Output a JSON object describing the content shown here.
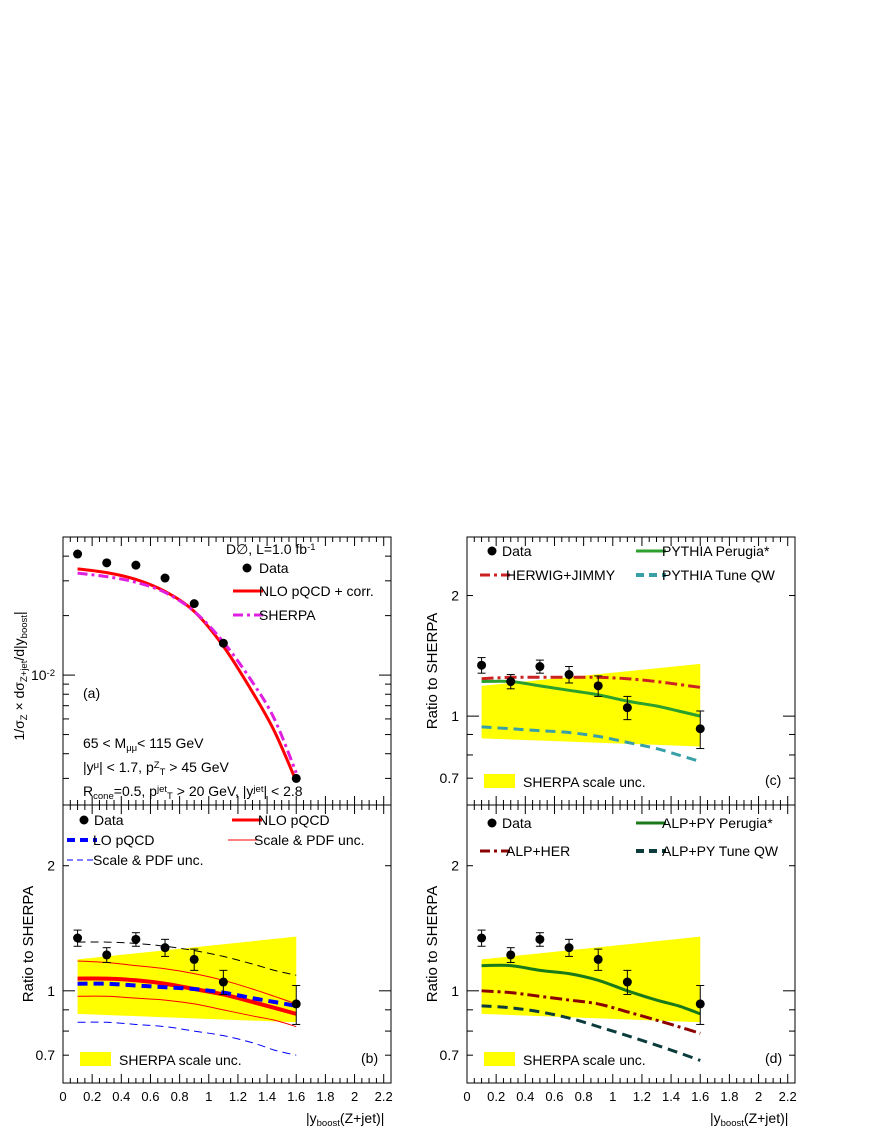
{
  "chart_data": [
    {
      "panel": "a",
      "type": "line",
      "ylabel_parts": [
        "1/σ",
        "Z",
        " × dσ",
        "Z+jet",
        "/d|y",
        "boost",
        "|"
      ],
      "yscale": "log",
      "ylim": [
        0.0022,
        0.05
      ],
      "xlim": [
        0,
        2.25
      ],
      "yticklabel": {
        "base": "10",
        "exp": "-2",
        "value": 0.01
      },
      "legend_header": {
        "text": "D∅, L=1.0 fb",
        "sup": "-1"
      },
      "legend": [
        {
          "label": "Data",
          "style": "marker"
        },
        {
          "label": "NLO pQCD + corr.",
          "style": "solid",
          "color": "#ff0000"
        },
        {
          "label": "SHERPA",
          "style": "dashdot",
          "color": "#e020e0"
        }
      ],
      "panel_label": "(a)",
      "cuts": [
        {
          "parts": [
            "65 < M",
            "μμ",
            "< 115 GeV"
          ]
        },
        {
          "parts": [
            "|y",
            "μ",
            "| < 1.7, p",
            "Z",
            "T",
            " > 45 GeV"
          ]
        },
        {
          "parts": [
            "R",
            "cone",
            "=0.5,  p",
            "jet",
            "T",
            " > 20 GeV,  |y",
            "jet",
            "| < 2.8"
          ]
        }
      ],
      "data": {
        "x": [
          0.1,
          0.3,
          0.5,
          0.7,
          0.9,
          1.1,
          1.6
        ],
        "y": [
          0.041,
          0.037,
          0.036,
          0.031,
          0.023,
          0.0145,
          0.003
        ]
      },
      "series": [
        {
          "name": "NLO pQCD + corr.",
          "color": "#ff0000",
          "x": [
            0.1,
            0.3,
            0.5,
            0.7,
            0.9,
            1.1,
            1.3,
            1.45,
            1.6
          ],
          "y": [
            0.0345,
            0.033,
            0.0305,
            0.0265,
            0.021,
            0.014,
            0.0082,
            0.0052,
            0.0029
          ]
        },
        {
          "name": "SHERPA",
          "color": "#e020e0",
          "x": [
            0.1,
            0.3,
            0.5,
            0.7,
            0.9,
            1.1,
            1.3,
            1.45,
            1.6
          ],
          "y": [
            0.0328,
            0.0315,
            0.0295,
            0.0262,
            0.021,
            0.0147,
            0.0092,
            0.006,
            0.0032
          ]
        }
      ]
    },
    {
      "panel": "b",
      "type": "line",
      "ylabel": "Ratio to SHERPA",
      "yscale": "log",
      "ylim": [
        0.6,
        2.8
      ],
      "xlim": [
        0,
        2.25
      ],
      "yticks": [
        0.7,
        1,
        2
      ],
      "yticklabels": [
        "0.7",
        "1",
        "2"
      ],
      "xticks": [
        0,
        0.2,
        0.4,
        0.6,
        0.8,
        1,
        1.2,
        1.4,
        1.6,
        1.8,
        2,
        2.2
      ],
      "xticklabels": [
        "0",
        "0.2",
        "0.4",
        "0.6",
        "0.8",
        "1",
        "1.2",
        "1.4",
        "1.6",
        "1.8",
        "2",
        "2.2"
      ],
      "xlabel_parts": [
        "|y",
        "boost",
        "(Z+jet)|"
      ],
      "panel_label": "(b)",
      "legend": [
        {
          "label": "Data",
          "style": "marker"
        },
        {
          "label": "NLO pQCD",
          "style": "thick-solid",
          "color": "#ff0000"
        },
        {
          "label": "LO pQCD",
          "style": "thick-dash",
          "color": "#0000ff"
        },
        {
          "label": "Scale & PDF unc.",
          "style": "thin-solid",
          "color": "#ff0000"
        },
        {
          "label": "Scale & PDF unc.",
          "style": "thin-dash",
          "color": "#0000ff"
        }
      ],
      "band": {
        "label": "SHERPA scale unc.",
        "color": "#ffff00",
        "x": [
          0.1,
          1.6
        ],
        "lower": [
          0.88,
          0.84
        ],
        "upper": [
          1.19,
          1.35
        ]
      },
      "data": {
        "x": [
          0.1,
          0.3,
          0.5,
          0.7,
          0.9,
          1.1,
          1.6
        ],
        "y": [
          1.34,
          1.22,
          1.33,
          1.27,
          1.19,
          1.05,
          0.93
        ],
        "err": [
          0.06,
          0.05,
          0.05,
          0.06,
          0.07,
          0.07,
          0.1
        ]
      },
      "series": [
        {
          "name": "NLO pQCD",
          "color": "#ff0000",
          "width": 4,
          "dash": "",
          "x": [
            0.1,
            0.3,
            0.5,
            0.7,
            0.9,
            1.1,
            1.3,
            1.45,
            1.6
          ],
          "y": [
            1.07,
            1.07,
            1.06,
            1.04,
            1.01,
            0.98,
            0.94,
            0.91,
            0.88
          ]
        },
        {
          "name": "NLO pQCD upper unc.",
          "color": "#ff0000",
          "width": 1,
          "dash": "",
          "x": [
            0.1,
            0.3,
            0.5,
            0.7,
            0.9,
            1.1,
            1.3,
            1.45,
            1.6
          ],
          "y": [
            1.18,
            1.17,
            1.15,
            1.13,
            1.1,
            1.06,
            1.01,
            0.97,
            0.93
          ]
        },
        {
          "name": "NLO pQCD lower unc.",
          "color": "#ff0000",
          "width": 1,
          "dash": "",
          "x": [
            0.1,
            0.3,
            0.5,
            0.7,
            0.9,
            1.1,
            1.3,
            1.45,
            1.6
          ],
          "y": [
            0.97,
            0.97,
            0.96,
            0.95,
            0.93,
            0.9,
            0.87,
            0.85,
            0.82
          ]
        },
        {
          "name": "LO pQCD",
          "color": "#0000ff",
          "width": 4,
          "dash": "10,6",
          "x": [
            0.1,
            0.3,
            0.5,
            0.7,
            0.9,
            1.1,
            1.3,
            1.45,
            1.6
          ],
          "y": [
            1.04,
            1.04,
            1.03,
            1.02,
            1.01,
            0.99,
            0.96,
            0.94,
            0.92
          ]
        },
        {
          "name": "LO pQCD upper unc.",
          "color": "#000000",
          "width": 1,
          "dash": "8,5",
          "x": [
            0.1,
            0.3,
            0.5,
            0.7,
            0.9,
            1.1,
            1.3,
            1.45,
            1.6
          ],
          "y": [
            1.31,
            1.31,
            1.3,
            1.28,
            1.25,
            1.21,
            1.16,
            1.12,
            1.09
          ]
        },
        {
          "name": "LO pQCD lower unc.",
          "color": "#0000ff",
          "width": 1,
          "dash": "8,5",
          "x": [
            0.1,
            0.3,
            0.5,
            0.7,
            0.9,
            1.1,
            1.3,
            1.45,
            1.6
          ],
          "y": [
            0.84,
            0.84,
            0.83,
            0.82,
            0.8,
            0.78,
            0.75,
            0.72,
            0.7
          ]
        }
      ]
    },
    {
      "panel": "c",
      "type": "line",
      "ylabel": "Ratio to SHERPA",
      "yscale": "log",
      "ylim": [
        0.6,
        2.8
      ],
      "xlim": [
        0,
        2.25
      ],
      "yticks": [
        0.7,
        1,
        2
      ],
      "yticklabels": [
        "0.7",
        "1",
        "2"
      ],
      "panel_label": "(c)",
      "legend": [
        {
          "label": "Data",
          "style": "marker"
        },
        {
          "label": "PYTHIA Perugia*",
          "style": "thick-solid",
          "color": "#2ca02c"
        },
        {
          "label": "HERWIG+JIMMY",
          "style": "dashdot",
          "color": "#cc2222"
        },
        {
          "label": "PYTHIA Tune QW",
          "style": "thick-dash",
          "color": "#3aa0a8"
        }
      ],
      "band": {
        "label": "SHERPA scale unc.",
        "color": "#ffff00",
        "x": [
          0.1,
          1.6
        ],
        "lower": [
          0.88,
          0.84
        ],
        "upper": [
          1.19,
          1.35
        ]
      },
      "data": {
        "x": [
          0.1,
          0.3,
          0.5,
          0.7,
          0.9,
          1.1,
          1.6
        ],
        "y": [
          1.34,
          1.22,
          1.33,
          1.27,
          1.19,
          1.05,
          0.93
        ],
        "err": [
          0.06,
          0.05,
          0.05,
          0.06,
          0.07,
          0.07,
          0.1
        ]
      },
      "series": [
        {
          "name": "HERWIG+JIMMY",
          "color": "#cc2222",
          "width": 3,
          "dash": "12,4,3,4",
          "x": [
            0.1,
            0.3,
            0.5,
            0.7,
            0.9,
            1.1,
            1.3,
            1.45,
            1.6
          ],
          "y": [
            1.24,
            1.25,
            1.25,
            1.25,
            1.25,
            1.24,
            1.22,
            1.2,
            1.18
          ]
        },
        {
          "name": "PYTHIA Perugia*",
          "color": "#2ca02c",
          "width": 3,
          "dash": "",
          "x": [
            0.1,
            0.3,
            0.5,
            0.7,
            0.9,
            1.1,
            1.3,
            1.45,
            1.6
          ],
          "y": [
            1.22,
            1.22,
            1.19,
            1.16,
            1.13,
            1.09,
            1.06,
            1.03,
            1.0
          ]
        },
        {
          "name": "PYTHIA Tune QW",
          "color": "#3aa0a8",
          "width": 3,
          "dash": "10,6",
          "x": [
            0.1,
            0.3,
            0.5,
            0.7,
            0.9,
            1.1,
            1.3,
            1.45,
            1.6
          ],
          "y": [
            0.94,
            0.93,
            0.92,
            0.91,
            0.89,
            0.86,
            0.83,
            0.8,
            0.77
          ]
        }
      ]
    },
    {
      "panel": "d",
      "type": "line",
      "ylabel": "Ratio to SHERPA",
      "yscale": "log",
      "ylim": [
        0.6,
        2.8
      ],
      "xlim": [
        0,
        2.25
      ],
      "yticks": [
        0.7,
        1,
        2
      ],
      "yticklabels": [
        "0.7",
        "1",
        "2"
      ],
      "xticks": [
        0,
        0.2,
        0.4,
        0.6,
        0.8,
        1,
        1.2,
        1.4,
        1.6,
        1.8,
        2,
        2.2
      ],
      "xticklabels": [
        "0",
        "0.2",
        "0.4",
        "0.6",
        "0.8",
        "1",
        "1.2",
        "1.4",
        "1.6",
        "1.8",
        "2",
        "2.2"
      ],
      "xlabel_parts": [
        "|y",
        "boost",
        "(Z+jet)|"
      ],
      "panel_label": "(d)",
      "legend": [
        {
          "label": "Data",
          "style": "marker"
        },
        {
          "label": "ALP+PY Perugia*",
          "style": "thick-solid",
          "color": "#1a7a1a"
        },
        {
          "label": "ALP+HER",
          "style": "dashdot",
          "color": "#8b0000"
        },
        {
          "label": "ALP+PY Tune QW",
          "style": "thick-dash",
          "color": "#0b3b3b"
        }
      ],
      "band": {
        "label": "SHERPA scale unc.",
        "color": "#ffff00",
        "x": [
          0.1,
          1.6
        ],
        "lower": [
          0.88,
          0.84
        ],
        "upper": [
          1.19,
          1.35
        ]
      },
      "data": {
        "x": [
          0.1,
          0.3,
          0.5,
          0.7,
          0.9,
          1.1,
          1.6
        ],
        "y": [
          1.34,
          1.22,
          1.33,
          1.27,
          1.19,
          1.05,
          0.93
        ],
        "err": [
          0.06,
          0.05,
          0.05,
          0.06,
          0.07,
          0.07,
          0.1
        ]
      },
      "series": [
        {
          "name": "ALP+PY Perugia*",
          "color": "#1a7a1a",
          "width": 3,
          "dash": "",
          "x": [
            0.1,
            0.3,
            0.5,
            0.7,
            0.9,
            1.1,
            1.3,
            1.45,
            1.6
          ],
          "y": [
            1.15,
            1.15,
            1.12,
            1.1,
            1.06,
            1.0,
            0.95,
            0.92,
            0.88
          ]
        },
        {
          "name": "ALP+HER",
          "color": "#8b0000",
          "width": 3,
          "dash": "12,4,3,4",
          "x": [
            0.1,
            0.3,
            0.5,
            0.7,
            0.9,
            1.1,
            1.3,
            1.45,
            1.6
          ],
          "y": [
            1.0,
            0.99,
            0.97,
            0.95,
            0.93,
            0.89,
            0.85,
            0.82,
            0.79
          ]
        },
        {
          "name": "ALP+PY Tune QW",
          "color": "#0b3b3b",
          "width": 3,
          "dash": "10,6",
          "x": [
            0.1,
            0.3,
            0.5,
            0.7,
            0.9,
            1.1,
            1.3,
            1.45,
            1.6
          ],
          "y": [
            0.92,
            0.91,
            0.89,
            0.86,
            0.82,
            0.78,
            0.74,
            0.71,
            0.68
          ]
        }
      ]
    }
  ]
}
